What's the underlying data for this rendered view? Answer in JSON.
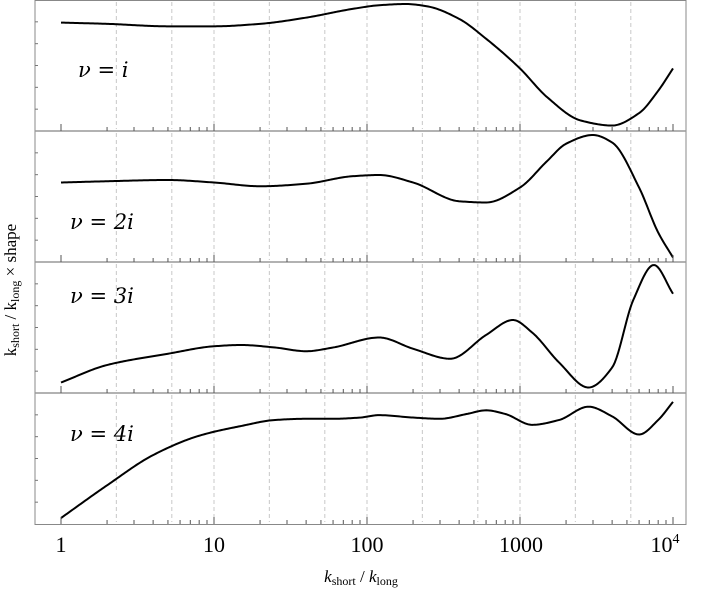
{
  "chart_data": {
    "type": "line",
    "xlabel": "k_short / k_long",
    "xlabel_parts": {
      "k1": "k",
      "sub1": "short",
      "sep": " / ",
      "k2": "k",
      "sub2": "long"
    },
    "ylabel": "k_short / k_long × shape",
    "ylabel_parts": {
      "k1": "k",
      "sub1": "short",
      "sep": " / k",
      "sub2": "long",
      "tail": " × shape"
    },
    "x_scale": "log",
    "xlim": [
      1,
      10000
    ],
    "x_ticks": [
      {
        "value": 1,
        "label": "1"
      },
      {
        "value": 10,
        "label": "10"
      },
      {
        "value": 100,
        "label": "100"
      },
      {
        "value": 1000,
        "label": "1000"
      },
      {
        "value": 10000,
        "label": "10",
        "sup": "4"
      }
    ],
    "grid": "vertical dashed",
    "panels": [
      {
        "label": "ν = i",
        "ylim": [
          0,
          1
        ],
        "x": [
          1,
          2,
          5,
          10,
          20,
          40,
          80,
          120,
          180,
          250,
          400,
          600,
          1000,
          1500,
          2500,
          4000,
          6000,
          8000,
          10000
        ],
        "values": [
          0.85,
          0.84,
          0.82,
          0.82,
          0.84,
          0.89,
          0.96,
          0.99,
          1.0,
          0.98,
          0.88,
          0.72,
          0.48,
          0.25,
          0.06,
          0.02,
          0.12,
          0.3,
          0.48
        ]
      },
      {
        "label": "ν = 2i",
        "ylim": [
          0,
          1
        ],
        "x": [
          1,
          2,
          5,
          10,
          20,
          40,
          80,
          120,
          200,
          400,
          600,
          1000,
          1500,
          2000,
          3000,
          4000,
          6000,
          8000,
          10000
        ],
        "values": [
          0.62,
          0.63,
          0.64,
          0.62,
          0.59,
          0.61,
          0.67,
          0.68,
          0.62,
          0.47,
          0.46,
          0.58,
          0.79,
          0.93,
          1.0,
          0.94,
          0.58,
          0.22,
          0.02
        ]
      },
      {
        "label": "ν = 3i",
        "ylim": [
          0,
          1
        ],
        "x": [
          1,
          2,
          5,
          10,
          15,
          25,
          40,
          60,
          120,
          200,
          350,
          600,
          900,
          1200,
          1800,
          2800,
          4000,
          5500,
          7500,
          10000
        ],
        "values": [
          0.06,
          0.2,
          0.29,
          0.35,
          0.36,
          0.34,
          0.31,
          0.34,
          0.42,
          0.33,
          0.25,
          0.44,
          0.56,
          0.46,
          0.22,
          0.02,
          0.18,
          0.72,
          1.0,
          0.77
        ]
      },
      {
        "label": "ν = 4i",
        "ylim": [
          0,
          1
        ],
        "x": [
          1,
          2,
          4,
          8,
          15,
          25,
          40,
          60,
          90,
          120,
          200,
          300,
          450,
          600,
          800,
          1200,
          1800,
          2800,
          4000,
          6000,
          8000,
          10000
        ],
        "values": [
          0.0,
          0.27,
          0.52,
          0.68,
          0.76,
          0.81,
          0.82,
          0.82,
          0.83,
          0.85,
          0.83,
          0.82,
          0.86,
          0.89,
          0.86,
          0.77,
          0.81,
          0.92,
          0.84,
          0.69,
          0.81,
          0.96
        ]
      }
    ],
    "colors": {
      "line": "#000000",
      "grid": "#c8c8c8",
      "frame": "#888888",
      "divider": "#999999"
    }
  }
}
